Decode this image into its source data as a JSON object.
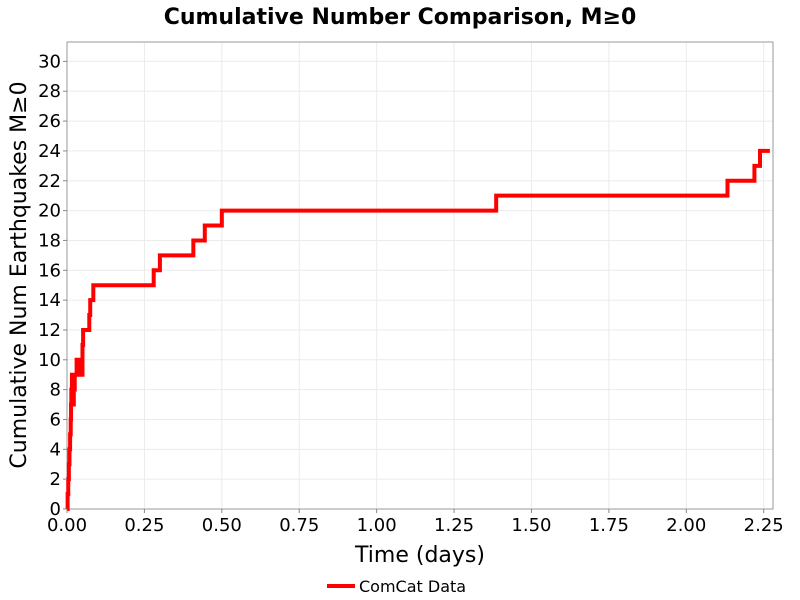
{
  "colors": {
    "series": "#ff0000",
    "grid": "#ebebeb",
    "frame": "#999999"
  },
  "chart_data": {
    "type": "line",
    "title": "Cumulative Number Comparison, M≥0",
    "xlabel": "Time (days)",
    "ylabel": "Cumulative Num Earthquakes M≥0",
    "xlim": [
      0,
      2.28
    ],
    "ylim": [
      0,
      31.3
    ],
    "xticks": [
      0,
      0.25,
      0.5,
      0.75,
      1,
      1.25,
      1.5,
      1.75,
      2,
      2.25
    ],
    "xtick_labels": [
      "0.00",
      "0.25",
      "0.50",
      "0.75",
      "1.00",
      "1.25",
      "1.50",
      "1.75",
      "2.00",
      "2.25"
    ],
    "yticks": [
      0,
      2,
      4,
      6,
      8,
      10,
      12,
      14,
      16,
      18,
      20,
      22,
      24,
      26,
      28,
      30
    ],
    "ytick_labels": [
      "0",
      "2",
      "4",
      "6",
      "8",
      "10",
      "12",
      "14",
      "16",
      "18",
      "20",
      "22",
      "24",
      "26",
      "28",
      "30"
    ],
    "grid": true,
    "legend_position": "bottom-center",
    "series": [
      {
        "name": "ComCat Data",
        "step": "post",
        "x": [
          0.0,
          0.002,
          0.004,
          0.006,
          0.008,
          0.01,
          0.012,
          0.013,
          0.014,
          0.016,
          0.018,
          0.022,
          0.025,
          0.031,
          0.038,
          0.05,
          0.052,
          0.057,
          0.072,
          0.075,
          0.08,
          0.085,
          0.096,
          0.28,
          0.3,
          0.408,
          0.445,
          0.5,
          1.386,
          2.133,
          2.22,
          2.238,
          2.27
        ],
        "y": [
          0,
          1,
          2,
          3,
          4,
          5,
          6,
          7,
          8,
          9,
          7,
          8,
          9,
          10,
          9,
          11,
          12,
          12,
          13,
          14,
          14,
          15,
          15,
          16,
          17,
          18,
          19,
          20,
          21,
          22,
          23,
          24,
          24
        ]
      }
    ]
  }
}
